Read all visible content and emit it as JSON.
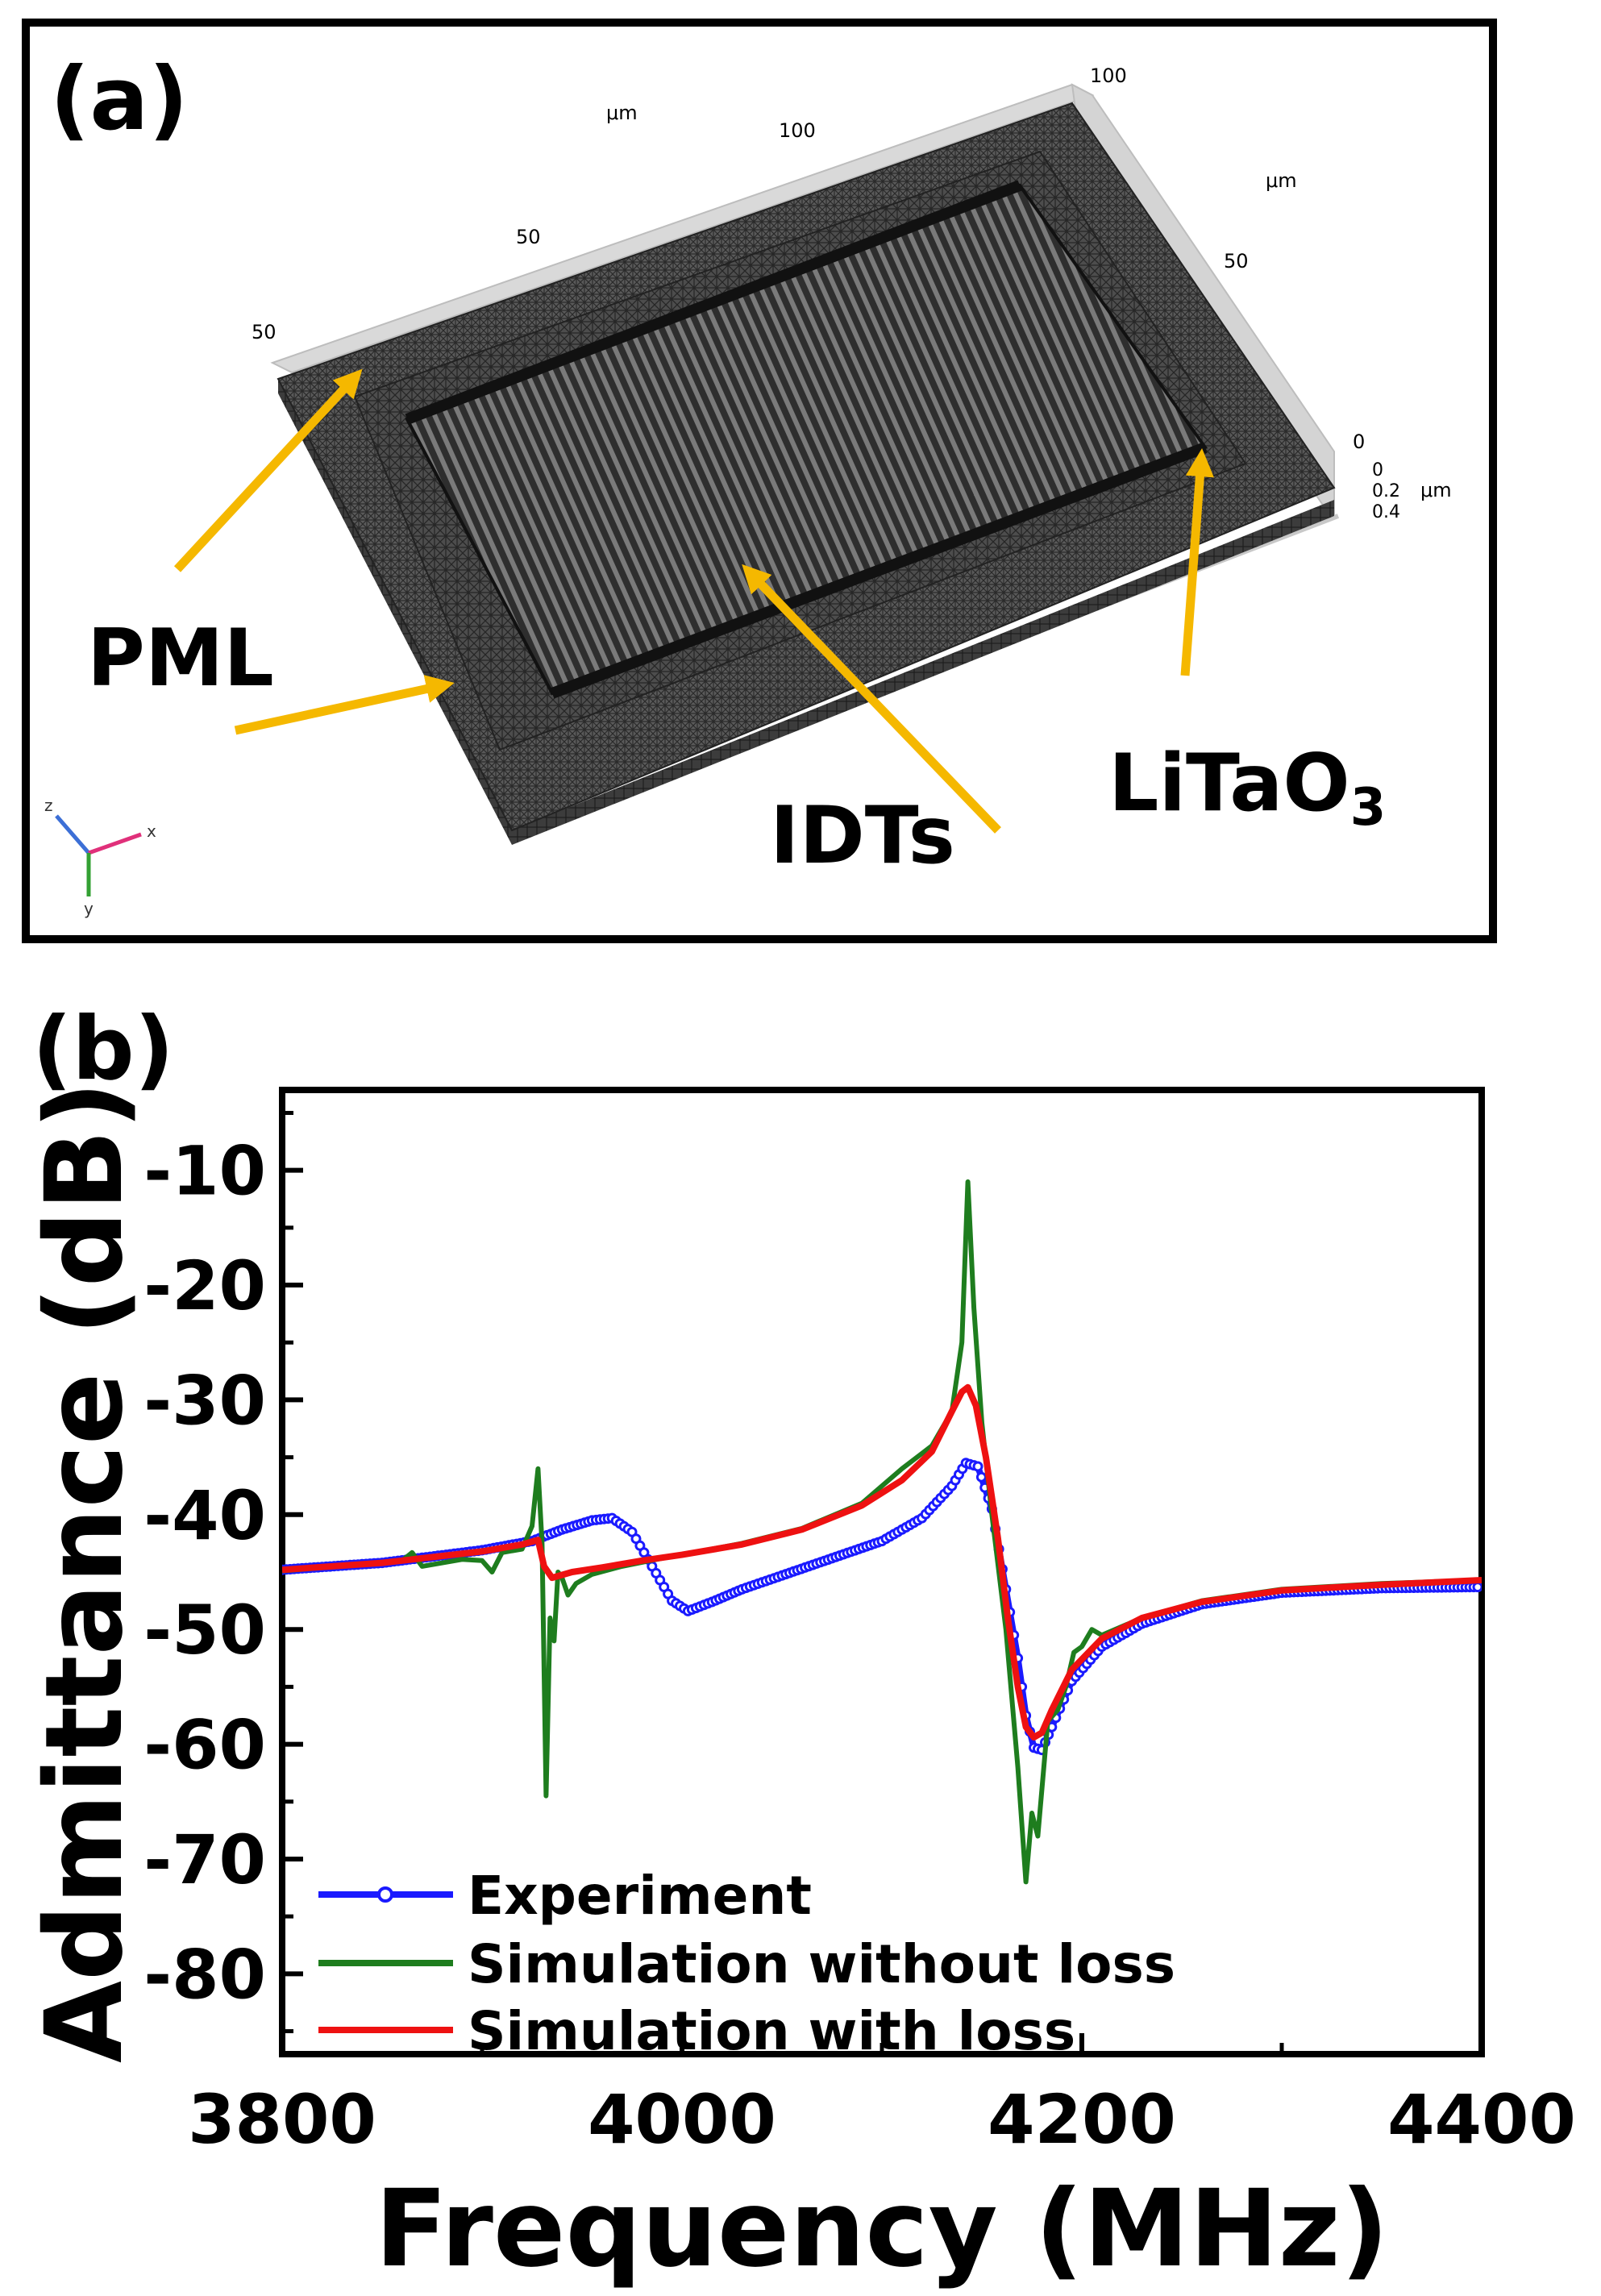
{
  "panel_a": {
    "label": "(a)",
    "axis_unit_top": "μm",
    "axis_unit_right": "μm",
    "axis_unit_depth": "μm",
    "ticks_top": [
      "50",
      "50",
      "100"
    ],
    "ticks_right": [
      "100",
      "50",
      "0"
    ],
    "ticks_depth": [
      "0",
      "0.2",
      "0.4"
    ],
    "labels": {
      "pml": "PML",
      "idts": "IDTs",
      "litao3_main": "LiTaO",
      "litao3_sub": "3"
    },
    "triad": {
      "z": "z",
      "x": "x",
      "y": "y"
    },
    "colors": {
      "arrow": "#f5b800",
      "mesh": "#3a3a3a"
    }
  },
  "panel_b": {
    "label": "(b)"
  },
  "chart_data": {
    "type": "line",
    "title": "",
    "xlabel": "Frequency (MHz)",
    "ylabel": "Admittance (dB)",
    "xlim": [
      3800,
      4400
    ],
    "ylim": [
      -87,
      -3
    ],
    "xticks": [
      3800,
      4000,
      4200,
      4400
    ],
    "yticks": [
      -80,
      -70,
      -60,
      -50,
      -40,
      -30,
      -20,
      -10
    ],
    "legend_position": "bottom-left",
    "series": [
      {
        "name": "Experiment",
        "color": "#1a1aff",
        "marker": "open-circle",
        "x": [
          3800,
          3850,
          3900,
          3925,
          3940,
          3955,
          3965,
          3975,
          3985,
          3995,
          4003,
          4015,
          4030,
          4050,
          4075,
          4100,
          4120,
          4135,
          4142,
          4148,
          4155,
          4162,
          4168,
          4172,
          4176,
          4180,
          4185,
          4195,
          4210,
          4230,
          4260,
          4300,
          4350,
          4400
        ],
        "y": [
          -44.8,
          -44.2,
          -43.1,
          -42.3,
          -41.3,
          -40.5,
          -40.3,
          -41.5,
          -44.5,
          -47.5,
          -48.4,
          -47.6,
          -46.5,
          -45.3,
          -43.8,
          -42.3,
          -40.3,
          -37.5,
          -35.5,
          -35.8,
          -39.5,
          -46.5,
          -52.5,
          -57.5,
          -60.3,
          -60.5,
          -58.5,
          -54.5,
          -51.5,
          -49.5,
          -47.8,
          -46.8,
          -46.4,
          -46.3
        ]
      },
      {
        "name": "Simulation without loss",
        "color": "#1e7d1e",
        "marker": "none",
        "x": [
          3800,
          3850,
          3860,
          3865,
          3870,
          3890,
          3900,
          3905,
          3910,
          3920,
          3925,
          3928,
          3930,
          3932,
          3934,
          3936,
          3938,
          3940,
          3943,
          3947,
          3955,
          3970,
          3990,
          4000,
          4030,
          4060,
          4090,
          4110,
          4125,
          4135,
          4140,
          4143,
          4146,
          4150,
          4155,
          4162,
          4168,
          4172,
          4175,
          4178,
          4183,
          4188,
          4192,
          4196,
          4200,
          4205,
          4210,
          4230,
          4260,
          4300,
          4350,
          4400
        ],
        "y": [
          -44.9,
          -44.2,
          -44.0,
          -43.3,
          -44.5,
          -43.9,
          -44.0,
          -45.0,
          -43.3,
          -43.0,
          -41.0,
          -36.0,
          -42.5,
          -64.5,
          -49.0,
          -51.0,
          -45.0,
          -45.5,
          -47.0,
          -46.0,
          -45.2,
          -44.5,
          -43.8,
          -43.5,
          -42.5,
          -41.2,
          -39.0,
          -36.0,
          -34.0,
          -31.0,
          -25.0,
          -11.0,
          -22.0,
          -32.0,
          -40.0,
          -50.0,
          -62.0,
          -72.0,
          -66.0,
          -68.0,
          -58.0,
          -57.0,
          -55.0,
          -52.0,
          -51.5,
          -50.0,
          -50.5,
          -49.0,
          -47.5,
          -46.5,
          -46.0,
          -45.7
        ]
      },
      {
        "name": "Simulation with loss",
        "color": "#ee1111",
        "marker": "none",
        "x": [
          3800,
          3850,
          3900,
          3920,
          3928,
          3931,
          3935,
          3945,
          3960,
          3980,
          4000,
          4030,
          4060,
          4090,
          4110,
          4125,
          4135,
          4140,
          4143,
          4147,
          4152,
          4158,
          4163,
          4168,
          4172,
          4176,
          4180,
          4185,
          4195,
          4210,
          4230,
          4260,
          4300,
          4350,
          4400
        ],
        "y": [
          -44.8,
          -44.2,
          -43.2,
          -42.6,
          -42.2,
          -44.5,
          -45.5,
          -45.0,
          -44.6,
          -44.0,
          -43.5,
          -42.6,
          -41.3,
          -39.2,
          -37.0,
          -34.5,
          -31.0,
          -29.3,
          -28.9,
          -30.5,
          -35.0,
          -42.0,
          -49.0,
          -55.0,
          -58.5,
          -59.4,
          -59.0,
          -57.0,
          -53.5,
          -50.8,
          -49.0,
          -47.6,
          -46.6,
          -46.1,
          -45.7
        ]
      }
    ]
  }
}
